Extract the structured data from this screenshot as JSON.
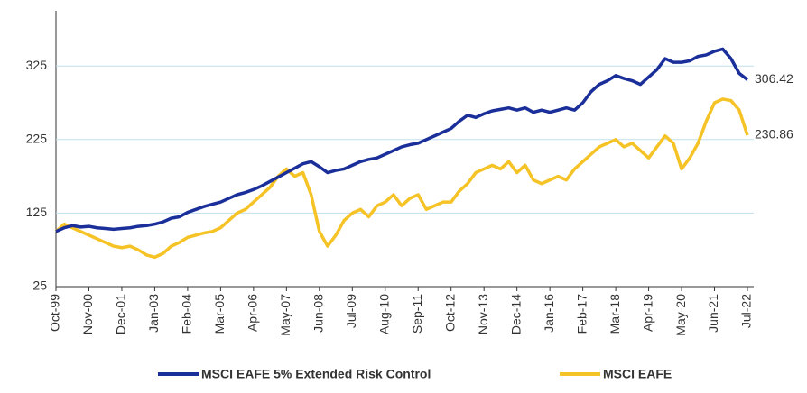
{
  "chart_data": {
    "type": "line",
    "categories": [
      "Oct-99",
      null,
      null,
      null,
      "Nov-00",
      null,
      null,
      null,
      "Dec-01",
      null,
      null,
      null,
      "Jan-03",
      null,
      null,
      null,
      "Feb-04",
      null,
      null,
      null,
      "Mar-05",
      null,
      null,
      null,
      "Apr-06",
      null,
      null,
      null,
      "May-07",
      null,
      null,
      null,
      "Jun-08",
      null,
      null,
      null,
      "Jul-09",
      null,
      null,
      null,
      "Aug-10",
      null,
      null,
      null,
      "Sep-11",
      null,
      null,
      null,
      "Oct-12",
      null,
      null,
      null,
      "Nov-13",
      null,
      null,
      null,
      "Dec-14",
      null,
      null,
      null,
      "Jan-16",
      null,
      null,
      null,
      "Feb-17",
      null,
      null,
      null,
      "Mar-18",
      null,
      null,
      null,
      "Apr-19",
      null,
      null,
      null,
      "May-20",
      null,
      null,
      null,
      "Jun-21",
      null,
      null,
      null,
      "Jul-22"
    ],
    "series": [
      {
        "name": "MSCI EAFE 5% Extended Risk Control",
        "color": "#1b2f9a",
        "values": [
          100,
          105,
          108,
          106,
          107,
          105,
          104,
          103,
          104,
          105,
          107,
          108,
          110,
          113,
          118,
          120,
          126,
          130,
          134,
          137,
          140,
          145,
          150,
          153,
          157,
          162,
          168,
          174,
          180,
          186,
          192,
          195,
          188,
          180,
          183,
          185,
          190,
          195,
          198,
          200,
          205,
          210,
          215,
          218,
          220,
          225,
          230,
          235,
          240,
          250,
          258,
          255,
          260,
          264,
          266,
          268,
          265,
          268,
          262,
          265,
          262,
          265,
          268,
          265,
          275,
          290,
          300,
          305,
          312,
          308,
          305,
          300,
          310,
          320,
          335,
          330,
          330,
          332,
          338,
          340,
          345,
          348,
          335,
          315,
          306.42
        ]
      },
      {
        "name": "MSCI EAFE",
        "color": "#f6c326",
        "values": [
          100,
          110,
          105,
          100,
          95,
          90,
          85,
          80,
          78,
          80,
          75,
          68,
          65,
          70,
          80,
          85,
          92,
          95,
          98,
          100,
          105,
          115,
          125,
          130,
          140,
          150,
          160,
          175,
          185,
          175,
          180,
          150,
          100,
          80,
          95,
          115,
          125,
          130,
          120,
          135,
          140,
          150,
          135,
          145,
          150,
          130,
          135,
          140,
          140,
          155,
          165,
          180,
          185,
          190,
          185,
          195,
          180,
          190,
          170,
          165,
          170,
          175,
          170,
          185,
          195,
          205,
          215,
          220,
          225,
          215,
          220,
          210,
          200,
          215,
          230,
          220,
          185,
          200,
          220,
          250,
          275,
          280,
          278,
          265,
          230.86
        ]
      }
    ],
    "ylim": [
      25,
      400
    ],
    "yticks": [
      25,
      125,
      225,
      325
    ],
    "grid": true
  }
}
